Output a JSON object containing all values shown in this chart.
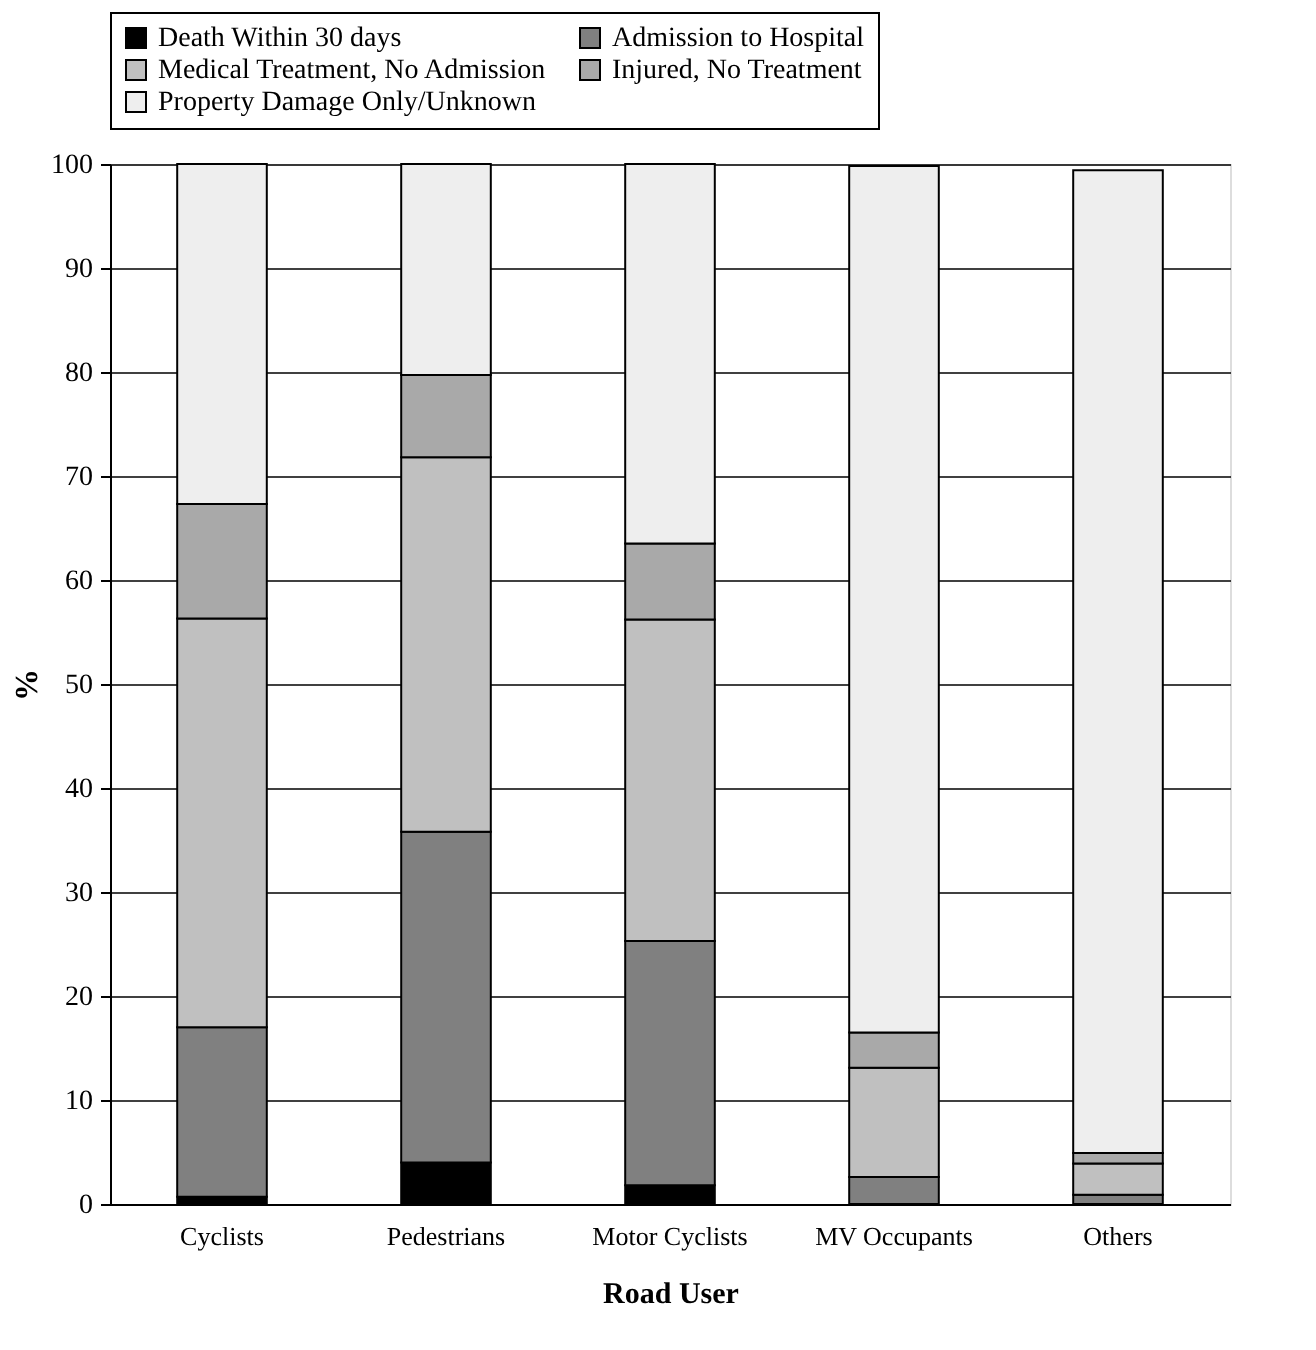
{
  "chart_data": {
    "type": "bar",
    "stacked": true,
    "xlabel": "Road User",
    "ylabel": "%",
    "categories": [
      "Cyclists",
      "Pedestrians",
      "Motor Cyclists",
      "MV Occupants",
      "Others"
    ],
    "series": [
      {
        "name": "Death Within 30 days",
        "color": "#000000",
        "values": [
          0.7,
          4.0,
          1.8,
          null,
          null
        ]
      },
      {
        "name": "Admission to Hospital",
        "color": "#808080",
        "values": [
          16.3,
          31.8,
          23.5,
          2.6,
          0.9
        ]
      },
      {
        "name": "Medical Treatment, No Admission",
        "color": "#c0c0c0",
        "values": [
          39.3,
          36.0,
          30.9,
          10.5,
          3.0
        ]
      },
      {
        "name": "Injured, No Treatment",
        "color": "#a9a9a9",
        "values": [
          11.0,
          7.9,
          7.3,
          3.4,
          1.0
        ]
      },
      {
        "name": "Property Damage Only/Unknown",
        "color": "#eeeeee",
        "values": [
          32.7,
          20.3,
          36.5,
          83.3,
          94.5
        ]
      }
    ],
    "ylim": [
      0,
      100
    ],
    "yticks": [
      0,
      10,
      20,
      30,
      40,
      50,
      60,
      70,
      80,
      90,
      100
    ],
    "grid": "y",
    "legend": "top"
  }
}
